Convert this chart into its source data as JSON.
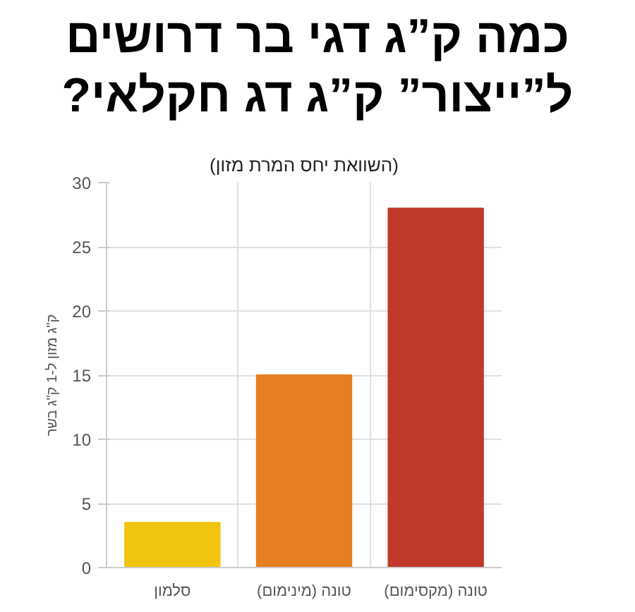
{
  "chart_data": {
    "type": "bar",
    "title": "כמה ק”ג דגי בר דרושים ל”ייצור” ק”ג דג חקלאי?",
    "subtitle": "(השוואת יחס המרת מזון)",
    "ylabel": "ק\"ג מזון ל-1 ק\"ג בשר",
    "categories": [
      "סלמון",
      "טונה (מינימום)",
      "טונה (מקסימום)"
    ],
    "values": [
      3.5,
      15,
      28
    ],
    "colors": [
      "#f1c40f",
      "#e67e22",
      "#c0392b"
    ],
    "ylim": [
      0,
      30
    ],
    "yticks": [
      0,
      5,
      10,
      15,
      20,
      25,
      30
    ],
    "grid": true
  }
}
